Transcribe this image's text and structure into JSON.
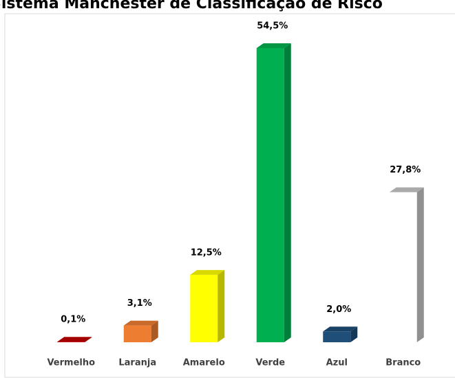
{
  "chart_data": {
    "type": "bar3d",
    "title": "Sistema Manchester de Classificação de Risco",
    "categories": [
      "Vermelho",
      "Laranja",
      "Amarelo",
      "Verde",
      "Azul",
      "Branco"
    ],
    "values": [
      0.1,
      3.1,
      12.5,
      54.5,
      2.0,
      27.8
    ],
    "value_labels": [
      "0,1%",
      "3,1%",
      "12,5%",
      "54,5%",
      "2,0%",
      "27,8%"
    ],
    "colors": [
      "#c00000",
      "#ed7d31",
      "#ffff00",
      "#00b050",
      "#1f4e79",
      "#ffffff"
    ]
  }
}
